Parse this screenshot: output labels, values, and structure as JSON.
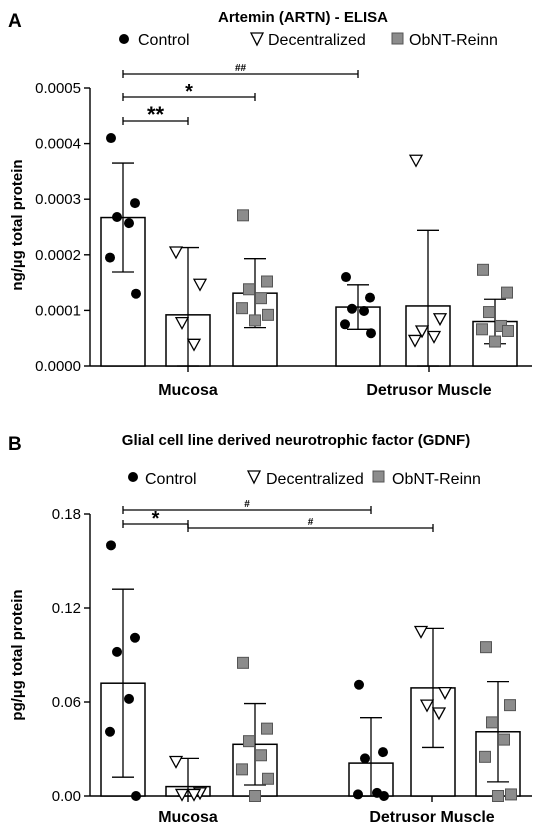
{
  "legend": {
    "items": [
      {
        "label": "Control",
        "marker": "circle",
        "color": "#000000"
      },
      {
        "label": "Decentralized",
        "marker": "triangle-down",
        "color": "#ffffff"
      },
      {
        "label": "ObNT-Reinn",
        "marker": "square",
        "color": "#8c8c8c"
      }
    ]
  },
  "chart_data": [
    {
      "panel": "A",
      "type": "bar",
      "title": "Artemin (ARTN) - ELISA",
      "ylabel": "ng/µg total protein",
      "ylim": [
        0,
        0.0005
      ],
      "yticks": [
        0.0,
        0.0001,
        0.0002,
        0.0003,
        0.0004,
        0.0005
      ],
      "ytick_labels": [
        "0.0000",
        "0.0001",
        "0.0002",
        "0.0003",
        "0.0004",
        "0.0005"
      ],
      "categories": [
        "Mucosa",
        "Detrusor Muscle"
      ],
      "series": [
        {
          "name": "Control",
          "means": [
            0.000267,
            0.000106
          ],
          "sd": [
            9.8e-05,
            4e-05
          ],
          "points": [
            [
              0.00041,
              0.000293,
              0.000268,
              0.000257,
              0.000195,
              0.00013
            ],
            [
              0.00016,
              0.000123,
              0.000103,
              9.9e-05,
              7.5e-05,
              5.9e-05
            ]
          ]
        },
        {
          "name": "Decentralized",
          "means": [
            9.2e-05,
            0.000108
          ],
          "sd": [
            0.000121,
            0.000136
          ],
          "points": [
            [
              0.000205,
              0.000147,
              7.8e-05,
              3.9e-05
            ],
            [
              0.00037,
              8.5e-05,
              6.3e-05,
              5.3e-05,
              4.6e-05
            ]
          ]
        },
        {
          "name": "ObNT-Reinn",
          "means": [
            0.000131,
            8e-05
          ],
          "sd": [
            6.2e-05,
            4e-05
          ],
          "points": [
            [
              0.000271,
              0.000152,
              0.000138,
              0.000122,
              0.000104,
              9.2e-05,
              8.2e-05
            ],
            [
              0.000173,
              0.000132,
              9.7e-05,
              7.2e-05,
              6.6e-05,
              6.3e-05,
              4.4e-05
            ]
          ]
        }
      ],
      "significance": [
        {
          "label": "**",
          "from": "Control|Mucosa",
          "to": "Decentralized|Mucosa"
        },
        {
          "label": "*",
          "from": "Control|Mucosa",
          "to": "ObNT-Reinn|Mucosa"
        },
        {
          "label": "##",
          "from": "Control|Mucosa",
          "to": "Control|Detrusor Muscle"
        }
      ]
    },
    {
      "panel": "B",
      "type": "bar",
      "title": "Glial cell line derived neurotrophic factor (GDNF)",
      "ylabel": "pg/µg total protein",
      "ylim": [
        0,
        0.18
      ],
      "yticks": [
        0.0,
        0.06,
        0.12,
        0.18
      ],
      "ytick_labels": [
        "0.00",
        "0.06",
        "0.12",
        "0.18"
      ],
      "categories": [
        "Mucosa",
        "Detrusor Muscle"
      ],
      "series": [
        {
          "name": "Control",
          "means": [
            0.072,
            0.021
          ],
          "sd": [
            0.06,
            0.029
          ],
          "points": [
            [
              0.16,
              0.101,
              0.092,
              0.062,
              0.041,
              0.0
            ],
            [
              0.071,
              0.028,
              0.024,
              0.002,
              0.001,
              0.0
            ]
          ]
        },
        {
          "name": "Decentralized",
          "means": [
            0.006,
            0.069
          ],
          "sd": [
            0.018,
            0.038
          ],
          "points": [
            [
              0.022,
              0.002,
              0.001,
              0.001
            ],
            [
              0.105,
              0.066,
              0.058,
              0.053
            ]
          ]
        },
        {
          "name": "ObNT-Reinn",
          "means": [
            0.033,
            0.041
          ],
          "sd": [
            0.026,
            0.032
          ],
          "points": [
            [
              0.085,
              0.043,
              0.035,
              0.026,
              0.017,
              0.011,
              0.0
            ],
            [
              0.095,
              0.058,
              0.047,
              0.036,
              0.025,
              0.001,
              0.0
            ]
          ]
        }
      ],
      "significance": [
        {
          "label": "*",
          "from": "Control|Mucosa",
          "to": "Decentralized|Mucosa"
        },
        {
          "label": "#",
          "from": "Control|Mucosa",
          "to": "Control|Detrusor Muscle"
        },
        {
          "label": "#",
          "from": "Decentralized|Mucosa",
          "to": "Decentralized|Detrusor Muscle"
        }
      ]
    }
  ]
}
